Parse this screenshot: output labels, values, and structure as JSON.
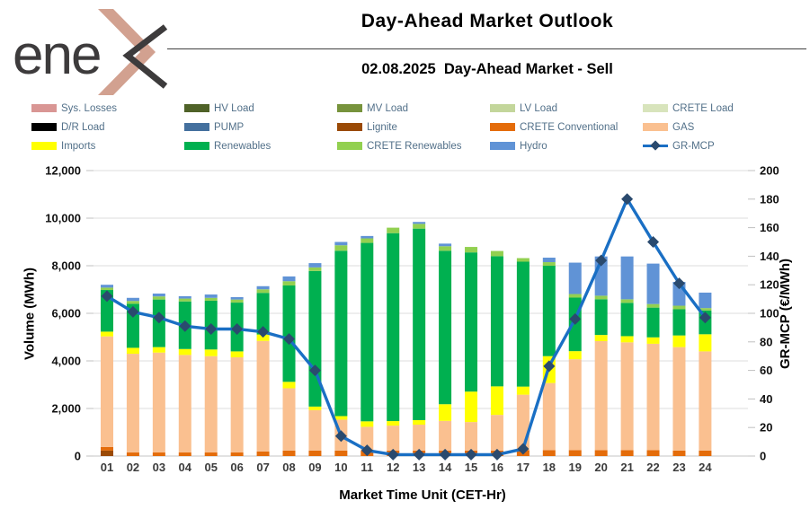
{
  "header": {
    "logo_text": "ene",
    "logo_name": "enex",
    "title": "Day-Ahead Market Outlook",
    "subtitle": "02.08.2025  Day-Ahead Market - Sell"
  },
  "legend": {
    "items": [
      {
        "label": "Sys. Losses",
        "color": "#D99694",
        "type": "box"
      },
      {
        "label": "HV Load",
        "color": "#4F6228",
        "type": "box"
      },
      {
        "label": "MV Load",
        "color": "#77933C",
        "type": "box"
      },
      {
        "label": "LV Load",
        "color": "#C3D69B",
        "type": "box"
      },
      {
        "label": "CRETE Load",
        "color": "#D8E4BC",
        "type": "box"
      },
      {
        "label": "D/R Load",
        "color": "#000000",
        "type": "box"
      },
      {
        "label": "PUMP",
        "color": "#44709E",
        "type": "box"
      },
      {
        "label": "Lignite",
        "color": "#9A4A06",
        "type": "box"
      },
      {
        "label": "CRETE Conventional",
        "color": "#E46C0A",
        "type": "box"
      },
      {
        "label": "GAS",
        "color": "#FAC090",
        "type": "box"
      },
      {
        "label": "Imports",
        "color": "#FFFF00",
        "type": "box"
      },
      {
        "label": "Renewables",
        "color": "#00B050",
        "type": "box"
      },
      {
        "label": "CRETE Renewables",
        "color": "#92D050",
        "type": "box"
      },
      {
        "label": "Hydro",
        "color": "#6093D6",
        "type": "box"
      },
      {
        "label": "GR-MCP",
        "color": "#1A6FC4",
        "marker_color": "#2A4A6E",
        "type": "line"
      }
    ]
  },
  "chart_data": {
    "type": "combo-stacked-bar-line",
    "title": "Day-Ahead Market Outlook",
    "subtitle": "02.08.2025  Day-Ahead Market - Sell",
    "categories": [
      "01",
      "02",
      "03",
      "04",
      "05",
      "06",
      "07",
      "08",
      "09",
      "10",
      "11",
      "12",
      "13",
      "14",
      "15",
      "16",
      "17",
      "18",
      "19",
      "20",
      "21",
      "22",
      "23",
      "24"
    ],
    "bar_series": [
      {
        "name": "Lignite",
        "color": "#9A4A06",
        "values": [
          230,
          0,
          0,
          0,
          0,
          0,
          0,
          0,
          0,
          0,
          0,
          0,
          0,
          0,
          0,
          0,
          0,
          0,
          0,
          0,
          0,
          0,
          0,
          0
        ]
      },
      {
        "name": "CRETE Conventional",
        "color": "#E46C0A",
        "values": [
          150,
          150,
          150,
          150,
          150,
          150,
          190,
          230,
          230,
          230,
          230,
          230,
          230,
          230,
          230,
          230,
          250,
          250,
          250,
          250,
          250,
          250,
          230,
          230
        ]
      },
      {
        "name": "GAS",
        "color": "#FAC090",
        "values": [
          4650,
          4150,
          4200,
          4100,
          4050,
          4000,
          4650,
          2620,
          1700,
          1300,
          1000,
          1050,
          1090,
          1250,
          1200,
          1500,
          2330,
          2820,
          3820,
          4580,
          4530,
          4470,
          4350,
          4170
        ]
      },
      {
        "name": "Imports",
        "color": "#FFFF00",
        "values": [
          200,
          250,
          230,
          250,
          280,
          250,
          270,
          270,
          150,
          150,
          230,
          190,
          190,
          700,
          1280,
          1200,
          340,
          1130,
          340,
          260,
          260,
          270,
          490,
          720
        ]
      },
      {
        "name": "Renewables",
        "color": "#00B050",
        "values": [
          1750,
          1850,
          2000,
          2000,
          2050,
          2050,
          1750,
          4050,
          5700,
          6950,
          7500,
          7900,
          8050,
          6450,
          5850,
          5470,
          5250,
          3800,
          2250,
          1500,
          1400,
          1250,
          1100,
          1000
        ]
      },
      {
        "name": "CRETE Renewables",
        "color": "#92D050",
        "values": [
          100,
          120,
          130,
          120,
          120,
          130,
          150,
          180,
          150,
          230,
          190,
          230,
          200,
          190,
          230,
          220,
          150,
          150,
          150,
          150,
          150,
          150,
          150,
          100
        ]
      },
      {
        "name": "Hydro",
        "color": "#6093D6",
        "values": [
          120,
          130,
          120,
          100,
          140,
          100,
          130,
          200,
          180,
          140,
          100,
          0,
          80,
          110,
          0,
          0,
          0,
          190,
          1320,
          1650,
          1800,
          1700,
          1000,
          650
        ]
      }
    ],
    "line_series": {
      "name": "GR-MCP",
      "color": "#1A6FC4",
      "marker_color": "#2A4A6E",
      "values": [
        112,
        101,
        97,
        91,
        89,
        89,
        87,
        82,
        60,
        14,
        4,
        1,
        1,
        1,
        1,
        1,
        5,
        63,
        96,
        137,
        180,
        150,
        121,
        97
      ]
    },
    "left_axis": {
      "title": "Volume (MWh)",
      "min": 0,
      "max": 12000,
      "tick_values": [
        0,
        2000,
        4000,
        6000,
        8000,
        10000,
        12000
      ],
      "tick_labels": [
        "0",
        "2,000",
        "4,000",
        "6,000",
        "8,000",
        "10,000",
        "12,000"
      ]
    },
    "right_axis": {
      "title": "GR-MCP (€/MWh)",
      "min": 0,
      "max": 200,
      "tick_values": [
        0,
        20,
        40,
        60,
        80,
        100,
        120,
        140,
        160,
        180,
        200
      ],
      "tick_labels": [
        "0",
        "20",
        "40",
        "60",
        "80",
        "100",
        "120",
        "140",
        "160",
        "180",
        "200"
      ]
    },
    "x_axis": {
      "title": "Market Time Unit (CET-Hr)"
    },
    "grid": true,
    "legend_position": "top"
  }
}
